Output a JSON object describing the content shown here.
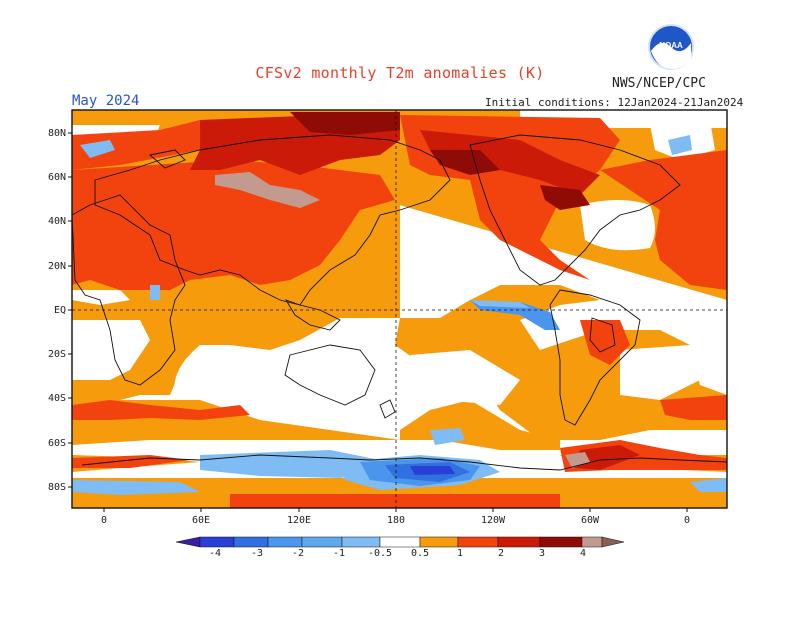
{
  "header": {
    "title": "CFSv2 monthly T2m anomalies (K)",
    "org": "NWS/NCEP/CPC",
    "month": "May 2024",
    "initial_conditions": "Initial conditions: 12Jan2024-21Jan2024",
    "logo_text": "NOAA"
  },
  "axes": {
    "lat_labels": [
      "80N",
      "60N",
      "40N",
      "20N",
      "EQ",
      "20S",
      "40S",
      "60S",
      "80S"
    ],
    "lon_labels": [
      "0",
      "60E",
      "120E",
      "180",
      "120W",
      "60W",
      "0"
    ]
  },
  "colorbar": {
    "tick_labels": [
      "-4",
      "-3",
      "-2",
      "-1",
      "-0.5",
      "0.5",
      "1",
      "2",
      "3",
      "4"
    ],
    "colors": [
      "#3a1ea8",
      "#2a3fd6",
      "#3170e0",
      "#4b96ec",
      "#7fbcf4",
      "#ffffff",
      "#f59b0c",
      "#f2430f",
      "#cc1a08",
      "#8f0b05",
      "#c29b8e",
      "#8a5f55"
    ]
  },
  "colors": {
    "ocean_base": "#ffffff",
    "warm_05": "#f59b0c",
    "warm_1": "#f2430f",
    "warm_2": "#cc1a08",
    "warm_3": "#8f0b05",
    "warm_4": "#c29b8e",
    "cool_05": "#7fbcf4",
    "cool_1": "#4b96ec",
    "cool_2": "#3170e0",
    "cool_3": "#2a3fd6"
  }
}
